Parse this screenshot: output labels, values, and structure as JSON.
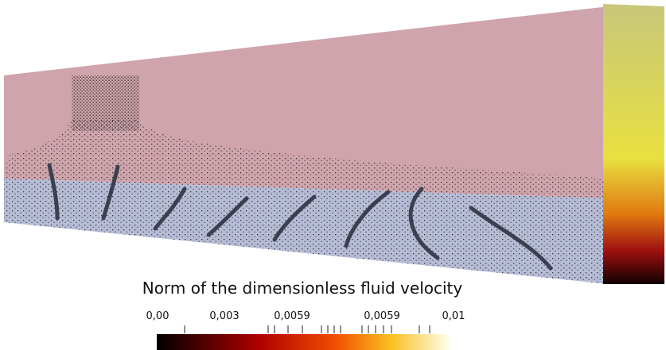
{
  "colorbar": {
    "title": "Norm of the dimensionless fluid velocity",
    "tick_labels": [
      "0,00",
      "0,003",
      "0,0059",
      "0,0059",
      "0,01"
    ]
  }
}
